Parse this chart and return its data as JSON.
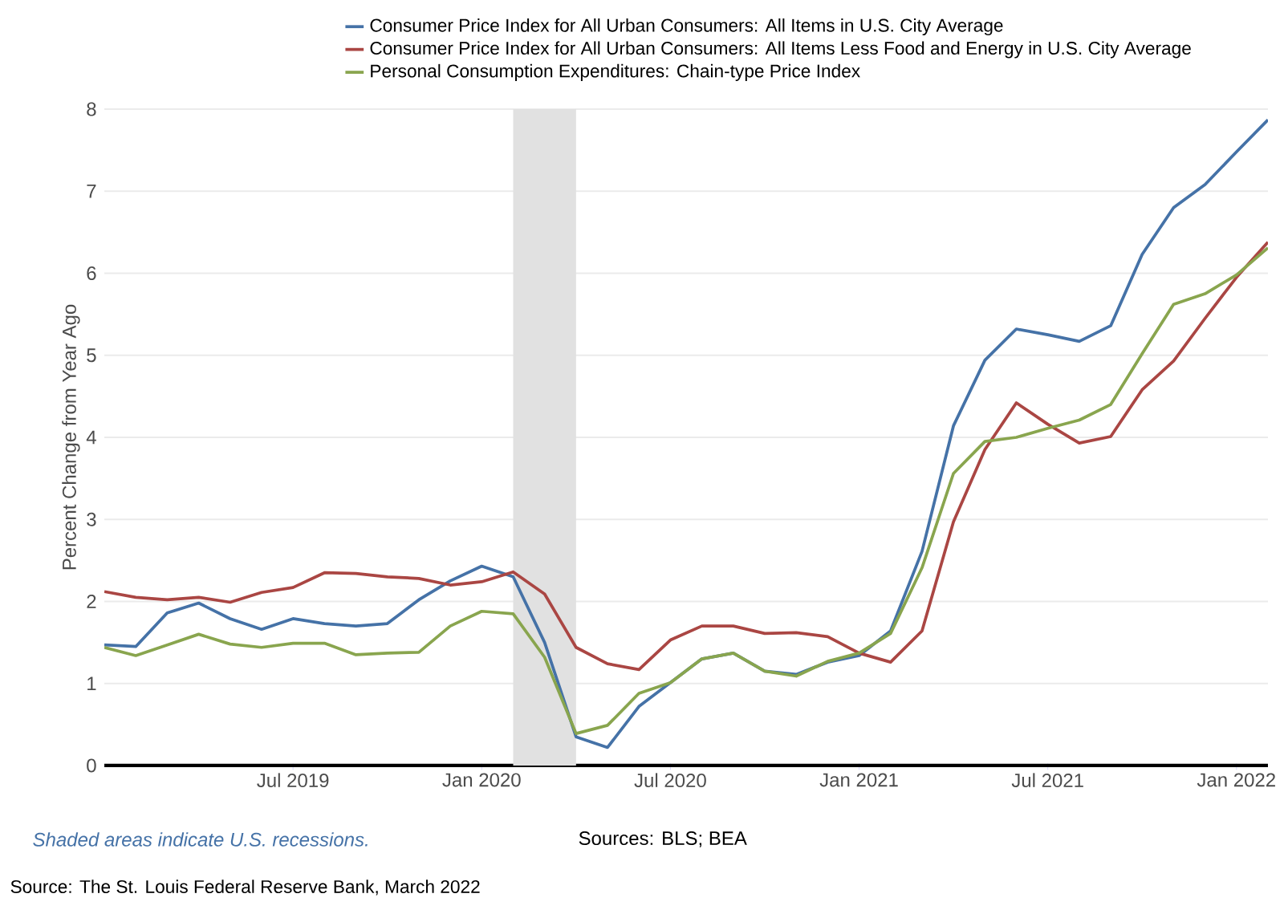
{
  "chart_data": {
    "type": "line",
    "ylabel": "Percent Change from Year Ago",
    "x": [
      "2019-01",
      "2019-02",
      "2019-03",
      "2019-04",
      "2019-05",
      "2019-06",
      "2019-07",
      "2019-08",
      "2019-09",
      "2019-10",
      "2019-11",
      "2019-12",
      "2020-01",
      "2020-02",
      "2020-03",
      "2020-04",
      "2020-05",
      "2020-06",
      "2020-07",
      "2020-08",
      "2020-09",
      "2020-10",
      "2020-11",
      "2020-12",
      "2021-01",
      "2021-02",
      "2021-03",
      "2021-04",
      "2021-05",
      "2021-06",
      "2021-07",
      "2021-08",
      "2021-09",
      "2021-10",
      "2021-11",
      "2021-12",
      "2022-01",
      "2022-02"
    ],
    "series": [
      {
        "name": "Consumer Price Index for All Urban Consumers: All Items in U.S. City Average",
        "color": "#4572a7",
        "values": [
          1.47,
          1.45,
          1.86,
          1.98,
          1.79,
          1.66,
          1.79,
          1.73,
          1.7,
          1.73,
          2.02,
          2.25,
          2.43,
          2.3,
          1.5,
          0.35,
          0.22,
          0.72,
          1.01,
          1.3,
          1.37,
          1.15,
          1.11,
          1.26,
          1.34,
          1.64,
          2.61,
          4.14,
          4.94,
          5.32,
          5.25,
          5.17,
          5.36,
          6.23,
          6.8,
          7.08,
          7.48,
          7.87
        ]
      },
      {
        "name": "Consumer Price Index for All Urban Consumers: All Items Less Food and Energy in U.S. City Average",
        "color": "#aa4643",
        "values": [
          2.12,
          2.05,
          2.02,
          2.05,
          1.99,
          2.11,
          2.17,
          2.35,
          2.34,
          2.3,
          2.28,
          2.2,
          2.24,
          2.36,
          2.09,
          1.44,
          1.24,
          1.17,
          1.53,
          1.7,
          1.7,
          1.61,
          1.62,
          1.57,
          1.37,
          1.26,
          1.64,
          2.97,
          3.85,
          4.42,
          4.16,
          3.93,
          4.01,
          4.58,
          4.93,
          5.45,
          5.95,
          6.38
        ]
      },
      {
        "name": "Personal Consumption Expenditures: Chain-type Price Index",
        "color": "#89a54e",
        "values": [
          1.44,
          1.34,
          1.47,
          1.6,
          1.48,
          1.44,
          1.49,
          1.49,
          1.35,
          1.37,
          1.38,
          1.7,
          1.88,
          1.85,
          1.32,
          0.39,
          0.49,
          0.88,
          1.01,
          1.3,
          1.37,
          1.15,
          1.09,
          1.27,
          1.37,
          1.61,
          2.41,
          3.56,
          3.95,
          4.0,
          4.11,
          4.21,
          4.4,
          5.02,
          5.62,
          5.75,
          5.98,
          6.31
        ]
      }
    ],
    "xlim": [
      "2019-01",
      "2022-02"
    ],
    "xticks": [
      {
        "value": "2019-07",
        "label": "Jul 2019"
      },
      {
        "value": "2020-01",
        "label": "Jan 2020"
      },
      {
        "value": "2020-07",
        "label": "Jul 2020"
      },
      {
        "value": "2021-01",
        "label": "Jan 2021"
      },
      {
        "value": "2021-07",
        "label": "Jul 2021"
      },
      {
        "value": "2022-01",
        "label": "Jan 2022"
      }
    ],
    "ylim": [
      0,
      8
    ],
    "yticks": [
      0,
      1,
      2,
      3,
      4,
      5,
      6,
      7,
      8
    ],
    "bands": [
      {
        "axis": "x",
        "from": "2020-02",
        "to": "2020-04",
        "color": "#e1e1e1"
      }
    ],
    "grid": "y",
    "legend": "top",
    "marker": "none",
    "line_style": "solid",
    "annotations": [
      "Shaded areas indicate U.S. recessions.",
      "Sources: BLS; BEA",
      "Source: The St. Louis Federal Reserve Bank, March 2022"
    ]
  }
}
